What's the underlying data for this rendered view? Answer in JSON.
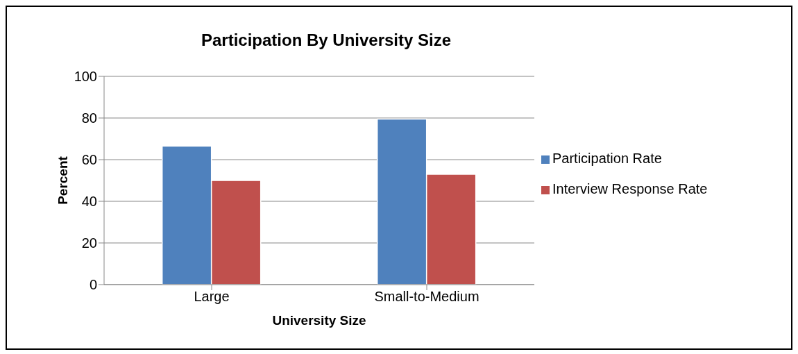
{
  "chart_data": {
    "type": "bar",
    "title": "Participation By University Size",
    "xlabel": "University Size",
    "ylabel": "Percent",
    "categories": [
      "Large",
      "Small-to-Medium"
    ],
    "series": [
      {
        "name": "Participation Rate",
        "color": "#4f81bd",
        "values": [
          66.5,
          79.5
        ]
      },
      {
        "name": "Interview Response Rate",
        "color": "#c0504d",
        "values": [
          50,
          53
        ]
      }
    ],
    "ylim": [
      0,
      100
    ],
    "yticks": [
      0,
      20,
      40,
      60,
      80,
      100
    ],
    "grid": "y",
    "legend": "right"
  }
}
